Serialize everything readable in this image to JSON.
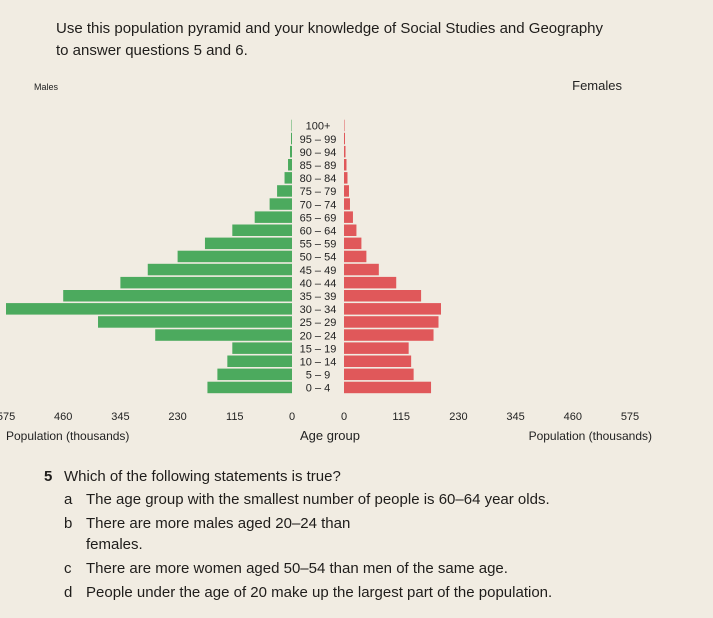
{
  "instructions": {
    "line1": "Use this population pyramid and your knowledge of Social Studies and Geography",
    "line2": "to answer questions 5 and 6."
  },
  "chart_data": {
    "type": "bar",
    "orientation": "horizontal-pyramid",
    "categories": [
      "0 – 4",
      "5 – 9",
      "10 – 14",
      "15 – 19",
      "20 – 24",
      "25 – 29",
      "30 – 34",
      "35 – 39",
      "40 – 44",
      "45 – 49",
      "50 – 54",
      "55 – 59",
      "60 – 64",
      "65 – 69",
      "70 – 74",
      "75 – 79",
      "80 – 84",
      "85 – 89",
      "90 – 94",
      "95 – 99",
      "100+"
    ],
    "series": [
      {
        "name": "Males",
        "color": "#4caa5e",
        "values": [
          170,
          150,
          130,
          120,
          275,
          390,
          575,
          460,
          345,
          290,
          230,
          175,
          120,
          75,
          45,
          30,
          15,
          8,
          4,
          2,
          1
        ]
      },
      {
        "name": "Females",
        "color": "#e0585a",
        "values": [
          175,
          140,
          135,
          130,
          180,
          190,
          195,
          155,
          105,
          70,
          45,
          35,
          25,
          18,
          12,
          10,
          7,
          5,
          3,
          2,
          1
        ]
      }
    ],
    "male_ticks": [
      "575",
      "460",
      "345",
      "230",
      "115",
      "0"
    ],
    "female_ticks": [
      "0",
      "115",
      "230",
      "345",
      "460",
      "575"
    ],
    "xlim": [
      0,
      575
    ],
    "left_xlabel": "Population (thousands)",
    "center_label": "Age group",
    "right_xlabel": "Population (thousands)",
    "grid": false
  },
  "questions": {
    "q5": {
      "number": "5",
      "text": "Which of the following statements is true?",
      "options": [
        {
          "letter": "a",
          "text": "The age group with the smallest number of people is 60–64 year olds."
        },
        {
          "letter": "b",
          "text": "There are more males aged 20–24 than females."
        },
        {
          "letter": "c",
          "text": "There are more women aged 50–54 than men of the same age."
        },
        {
          "letter": "d",
          "text": "People under the age of 20 make up the largest part of the population."
        }
      ]
    }
  }
}
